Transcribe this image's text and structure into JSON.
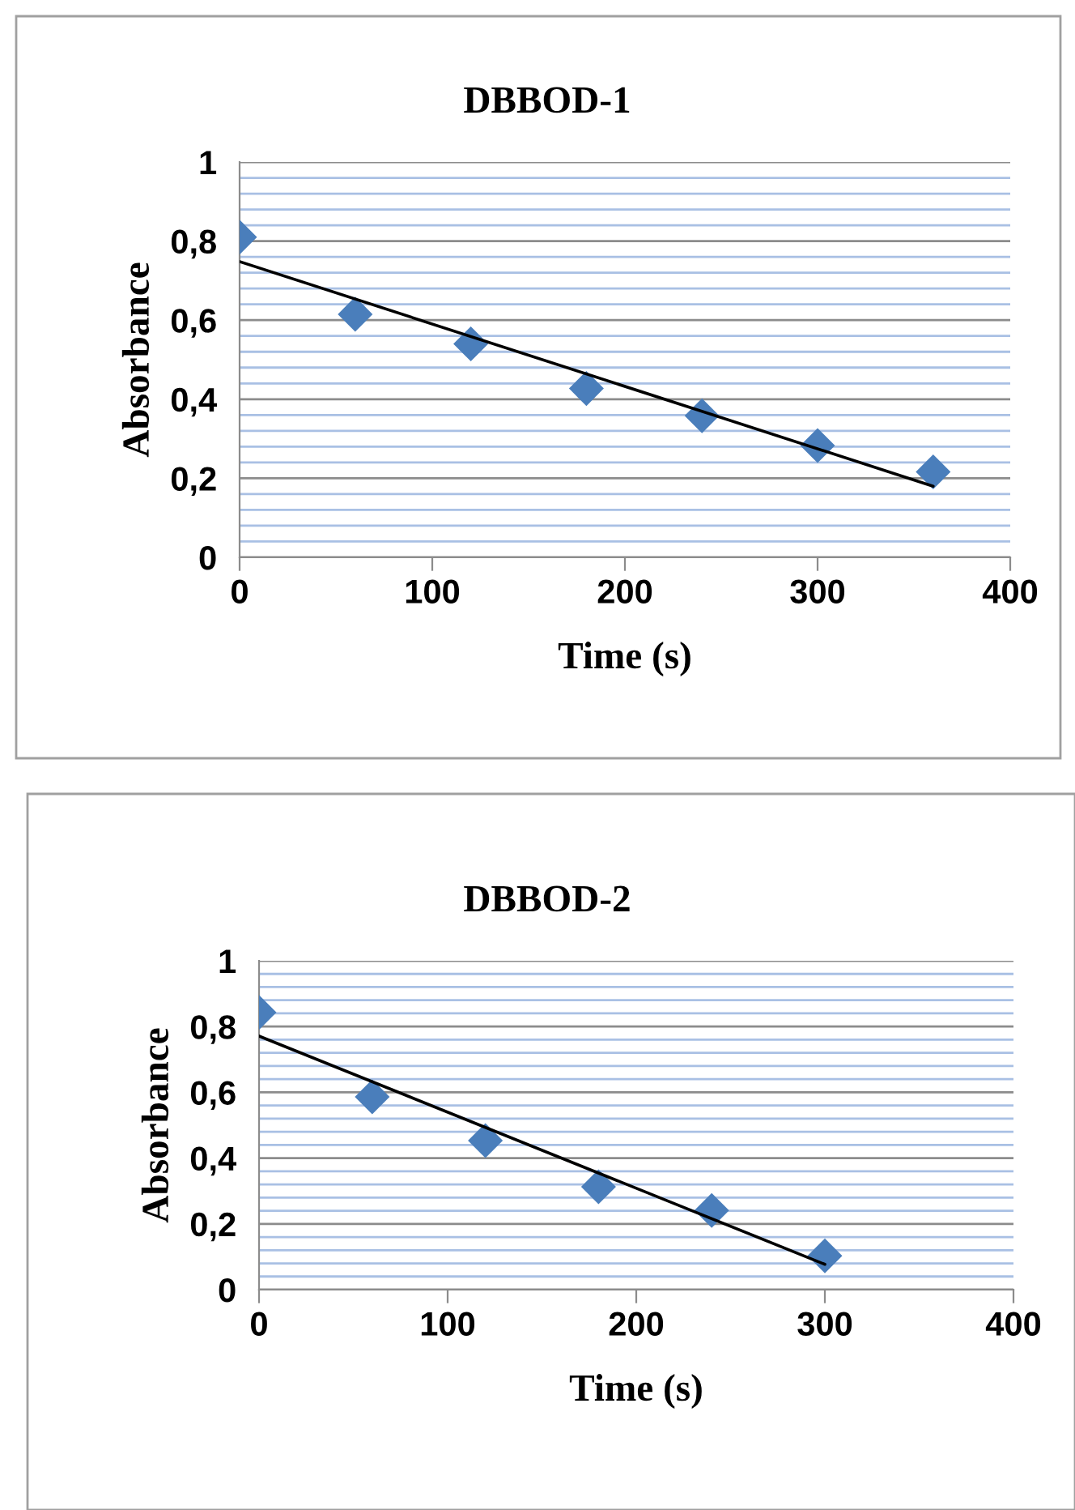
{
  "chart_data": [
    {
      "type": "scatter",
      "title": "DBBOD-1",
      "xlabel": "Time (s)",
      "ylabel": "Absorbance",
      "grid": "y",
      "xlim": [
        0,
        400
      ],
      "xticks": [
        0,
        100,
        200,
        300,
        400
      ],
      "ylim": [
        0,
        1
      ],
      "yticks": [
        0,
        {
          "value": 0.04,
          "label": null
        },
        {
          "value": 0.08,
          "label": null
        },
        {
          "value": 0.12,
          "label": null
        },
        {
          "value": 0.16,
          "label": null
        },
        {
          "value": 0.2,
          "label": "0,2"
        },
        {
          "value": 0.24,
          "label": null
        },
        {
          "value": 0.28,
          "label": null
        },
        {
          "value": 0.32,
          "label": null
        },
        {
          "value": 0.36,
          "label": null
        },
        {
          "value": 0.4,
          "label": "0,4"
        },
        {
          "value": 0.44,
          "label": null
        },
        {
          "value": 0.48,
          "label": null
        },
        {
          "value": 0.52,
          "label": null
        },
        {
          "value": 0.56,
          "label": null
        },
        {
          "value": 0.6,
          "label": "0,6"
        },
        {
          "value": 0.64,
          "label": null
        },
        {
          "value": 0.68,
          "label": null
        },
        {
          "value": 0.72,
          "label": null
        },
        {
          "value": 0.76,
          "label": null
        },
        {
          "value": 0.8,
          "label": "0,8"
        },
        {
          "value": 0.84,
          "label": null
        },
        {
          "value": 0.88,
          "label": null
        },
        {
          "value": 0.92,
          "label": null
        },
        {
          "value": 0.96,
          "label": null
        },
        1
      ],
      "series": [
        {
          "color": "#4a7ebb",
          "marker": "diamond",
          "x": [
            0,
            60,
            120,
            180,
            240,
            300,
            360
          ],
          "values": [
            0.81,
            0.615,
            0.54,
            0.427,
            0.358,
            0.283,
            0.216
          ]
        },
        {
          "type": "line",
          "color": "#000000",
          "x": [
            0,
            360
          ],
          "values": [
            0.748,
            0.18
          ]
        }
      ]
    },
    {
      "type": "scatter",
      "title": "DBBOD-2",
      "xlabel": "Time (s)",
      "ylabel": "Absorbance",
      "grid": "y",
      "xlim": [
        0,
        400
      ],
      "xticks": [
        0,
        100,
        200,
        300,
        400
      ],
      "ylim": [
        0,
        1
      ],
      "yticks": [
        0,
        {
          "value": 0.04,
          "label": null
        },
        {
          "value": 0.08,
          "label": null
        },
        {
          "value": 0.12,
          "label": null
        },
        {
          "value": 0.16,
          "label": null
        },
        {
          "value": 0.2,
          "label": "0,2"
        },
        {
          "value": 0.24,
          "label": null
        },
        {
          "value": 0.28,
          "label": null
        },
        {
          "value": 0.32,
          "label": null
        },
        {
          "value": 0.36,
          "label": null
        },
        {
          "value": 0.4,
          "label": "0,4"
        },
        {
          "value": 0.44,
          "label": null
        },
        {
          "value": 0.48,
          "label": null
        },
        {
          "value": 0.52,
          "label": null
        },
        {
          "value": 0.56,
          "label": null
        },
        {
          "value": 0.6,
          "label": "0,6"
        },
        {
          "value": 0.64,
          "label": null
        },
        {
          "value": 0.68,
          "label": null
        },
        {
          "value": 0.72,
          "label": null
        },
        {
          "value": 0.76,
          "label": null
        },
        {
          "value": 0.8,
          "label": "0,8"
        },
        {
          "value": 0.84,
          "label": null
        },
        {
          "value": 0.88,
          "label": null
        },
        {
          "value": 0.92,
          "label": null
        },
        {
          "value": 0.96,
          "label": null
        },
        1
      ],
      "series": [
        {
          "color": "#4a7ebb",
          "marker": "diamond",
          "x": [
            0,
            60,
            120,
            180,
            240,
            300
          ],
          "values": [
            0.843,
            0.586,
            0.453,
            0.313,
            0.241,
            0.103
          ]
        },
        {
          "type": "line",
          "color": "#000000",
          "x": [
            0,
            300
          ],
          "values": [
            0.771,
            0.077
          ]
        }
      ]
    }
  ]
}
